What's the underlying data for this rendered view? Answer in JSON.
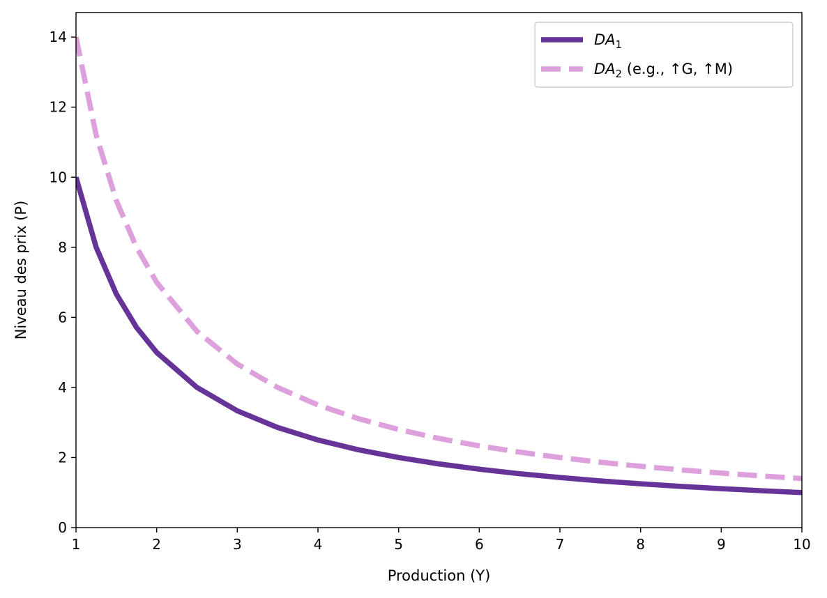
{
  "chart_data": {
    "type": "line",
    "title": "",
    "xlabel": "Production (Y)",
    "ylabel": "Niveau des prix (P)",
    "xlim": [
      1,
      10
    ],
    "ylim": [
      0,
      14.7
    ],
    "xticks": [
      1,
      2,
      3,
      4,
      5,
      6,
      7,
      8,
      9,
      10
    ],
    "yticks": [
      0,
      2,
      4,
      6,
      8,
      10,
      12,
      14
    ],
    "grid": false,
    "legend_position": "top-right",
    "x": [
      1.0,
      1.25,
      1.5,
      1.75,
      2.0,
      2.5,
      3.0,
      3.5,
      4.0,
      4.5,
      5.0,
      5.5,
      6.0,
      6.5,
      7.0,
      7.5,
      8.0,
      8.5,
      9.0,
      9.5,
      10.0
    ],
    "series": [
      {
        "name": "DA1",
        "legend": {
          "base": "DA",
          "sub": "1",
          "suffix": ""
        },
        "color": "#663399",
        "style": "solid",
        "values": [
          10.0,
          8.0,
          6.667,
          5.714,
          5.0,
          4.0,
          3.333,
          2.857,
          2.5,
          2.222,
          2.0,
          1.818,
          1.667,
          1.538,
          1.429,
          1.333,
          1.25,
          1.176,
          1.111,
          1.053,
          1.0
        ]
      },
      {
        "name": "DA2 (e.g., ↑G, ↑M)",
        "legend": {
          "base": "DA",
          "sub": "2",
          "suffix": " (e.g., ↑G, ↑M)"
        },
        "color": "#dda0dd",
        "style": "dashed",
        "values": [
          14.0,
          11.2,
          9.333,
          8.0,
          7.0,
          5.6,
          4.667,
          4.0,
          3.5,
          3.111,
          2.8,
          2.545,
          2.333,
          2.154,
          2.0,
          1.867,
          1.75,
          1.647,
          1.556,
          1.474,
          1.4
        ]
      }
    ]
  }
}
